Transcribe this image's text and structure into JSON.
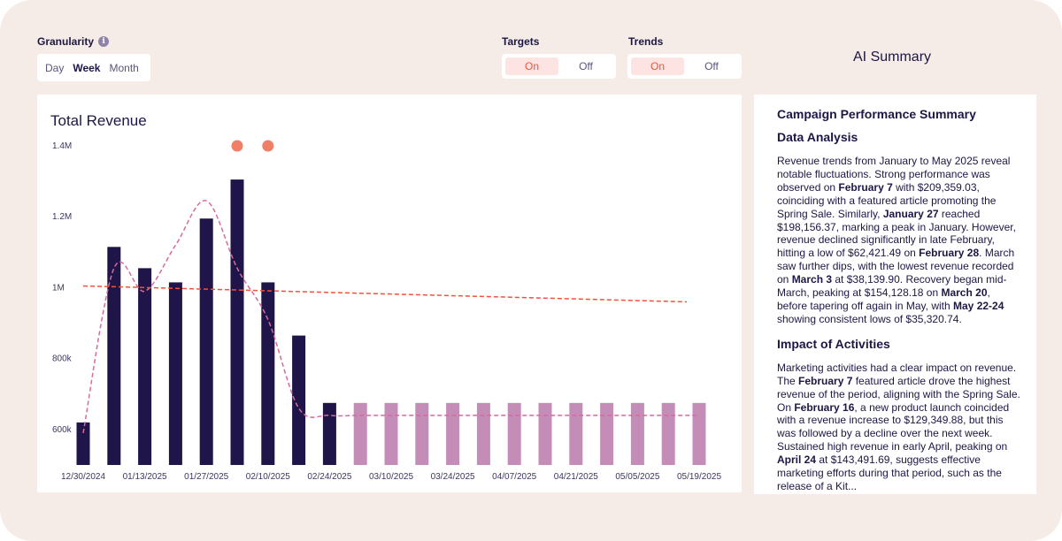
{
  "controls": {
    "granularity": {
      "label": "Granularity",
      "info_icon": "i",
      "options": [
        "Day",
        "Week",
        "Month"
      ],
      "selected": "Week"
    },
    "targets": {
      "label": "Targets",
      "on": "On",
      "off": "Off",
      "selected": "On"
    },
    "trends": {
      "label": "Trends",
      "on": "On",
      "off": "Off",
      "selected": "On"
    }
  },
  "ai_summary_heading": "AI Summary",
  "chart": {
    "title": "Total Revenue"
  },
  "colors": {
    "actual_bar": "#1f1548",
    "forecast_bar": "#c48db8",
    "target_marker": "#f07f68",
    "trend_line": "#e8553e",
    "smooth_line": "#d86a9e"
  },
  "chart_data": {
    "type": "bar",
    "title": "Total Revenue",
    "y_ticks": [
      "600k",
      "800k",
      "1M",
      "1.2M",
      "1.4M"
    ],
    "y_tick_values": [
      600000,
      800000,
      1000000,
      1200000,
      1400000
    ],
    "ylim": [
      500000,
      1400000
    ],
    "x_tick_labels": [
      "12/30/2024",
      "01/13/2025",
      "01/27/2025",
      "02/10/2025",
      "02/24/2025",
      "03/10/2025",
      "03/24/2025",
      "04/07/2025",
      "04/21/2025",
      "05/05/2025",
      "05/19/2025"
    ],
    "categories": [
      "12/30/2024",
      "01/06/2025",
      "01/13/2025",
      "01/20/2025",
      "01/27/2025",
      "02/03/2025",
      "02/10/2025",
      "02/17/2025",
      "02/24/2025",
      "03/03/2025",
      "03/10/2025",
      "03/17/2025",
      "03/24/2025",
      "03/31/2025",
      "04/07/2025",
      "04/14/2025",
      "04/21/2025",
      "04/28/2025",
      "05/05/2025",
      "05/12/2025",
      "05/19/2025"
    ],
    "series": [
      {
        "name": "Actual",
        "values": [
          620000,
          1115000,
          1055000,
          1015000,
          1195000,
          1305000,
          1015000,
          865000,
          675000,
          null,
          null,
          null,
          null,
          null,
          null,
          null,
          null,
          null,
          null,
          null,
          null
        ]
      },
      {
        "name": "Forecast",
        "values": [
          null,
          null,
          null,
          null,
          null,
          null,
          null,
          null,
          null,
          675000,
          675000,
          675000,
          675000,
          675000,
          675000,
          675000,
          675000,
          675000,
          675000,
          675000,
          675000
        ]
      }
    ],
    "smoothed_trend": [
      590000,
      1055000,
      990000,
      1120000,
      1245000,
      1055000,
      910000,
      660000,
      640000,
      640000,
      640000,
      640000,
      640000,
      640000,
      640000,
      640000,
      640000,
      640000,
      640000,
      640000,
      640000
    ],
    "linear_trend": {
      "start": 1005000,
      "end": 960000
    },
    "target_markers": [
      {
        "category": "02/03/2025",
        "value": 1400000
      },
      {
        "category": "02/10/2025",
        "value": 1400000
      }
    ]
  },
  "summary": {
    "title": "Campaign Performance Summary",
    "section1": {
      "heading": "Data Analysis",
      "paragraph": [
        {
          "t": "Revenue trends from January to May 2025 reveal notable fluctuations. Strong performance was observed on "
        },
        {
          "t": "February 7",
          "b": true
        },
        {
          "t": " with $209,359.03, coinciding with a featured article promoting the Spring Sale. Similarly, "
        },
        {
          "t": "January 27",
          "b": true
        },
        {
          "t": " reached $198,156.37, marking a peak in January. However, revenue declined significantly in late February, hitting a low of $62,421.49 on "
        },
        {
          "t": "February 28",
          "b": true
        },
        {
          "t": ". March saw further dips, with the lowest revenue recorded on "
        },
        {
          "t": "March 3",
          "b": true
        },
        {
          "t": " at $38,139.90. Recovery began mid-March, peaking at $154,128.18 on "
        },
        {
          "t": "March 20",
          "b": true
        },
        {
          "t": ", before tapering off again in May, with "
        },
        {
          "t": "May 22-24",
          "b": true
        },
        {
          "t": " showing consistent lows of $35,320.74."
        }
      ]
    },
    "section2": {
      "heading": "Impact of Activities",
      "paragraph": [
        {
          "t": "Marketing activities had a clear impact on revenue. The "
        },
        {
          "t": "February 7",
          "b": true
        },
        {
          "t": " featured article drove the highest revenue of the period, aligning with the Spring Sale. On "
        },
        {
          "t": "February 16",
          "b": true
        },
        {
          "t": ", a new product launch coincided with a revenue increase to $129,349.88, but this was followed by a decline over the next week. Sustained high revenue in early April, peaking on "
        },
        {
          "t": "April 24",
          "b": true
        },
        {
          "t": " at $143,491.69, suggests effective marketing efforts during that period, such as the release of a Kit..."
        }
      ]
    }
  }
}
